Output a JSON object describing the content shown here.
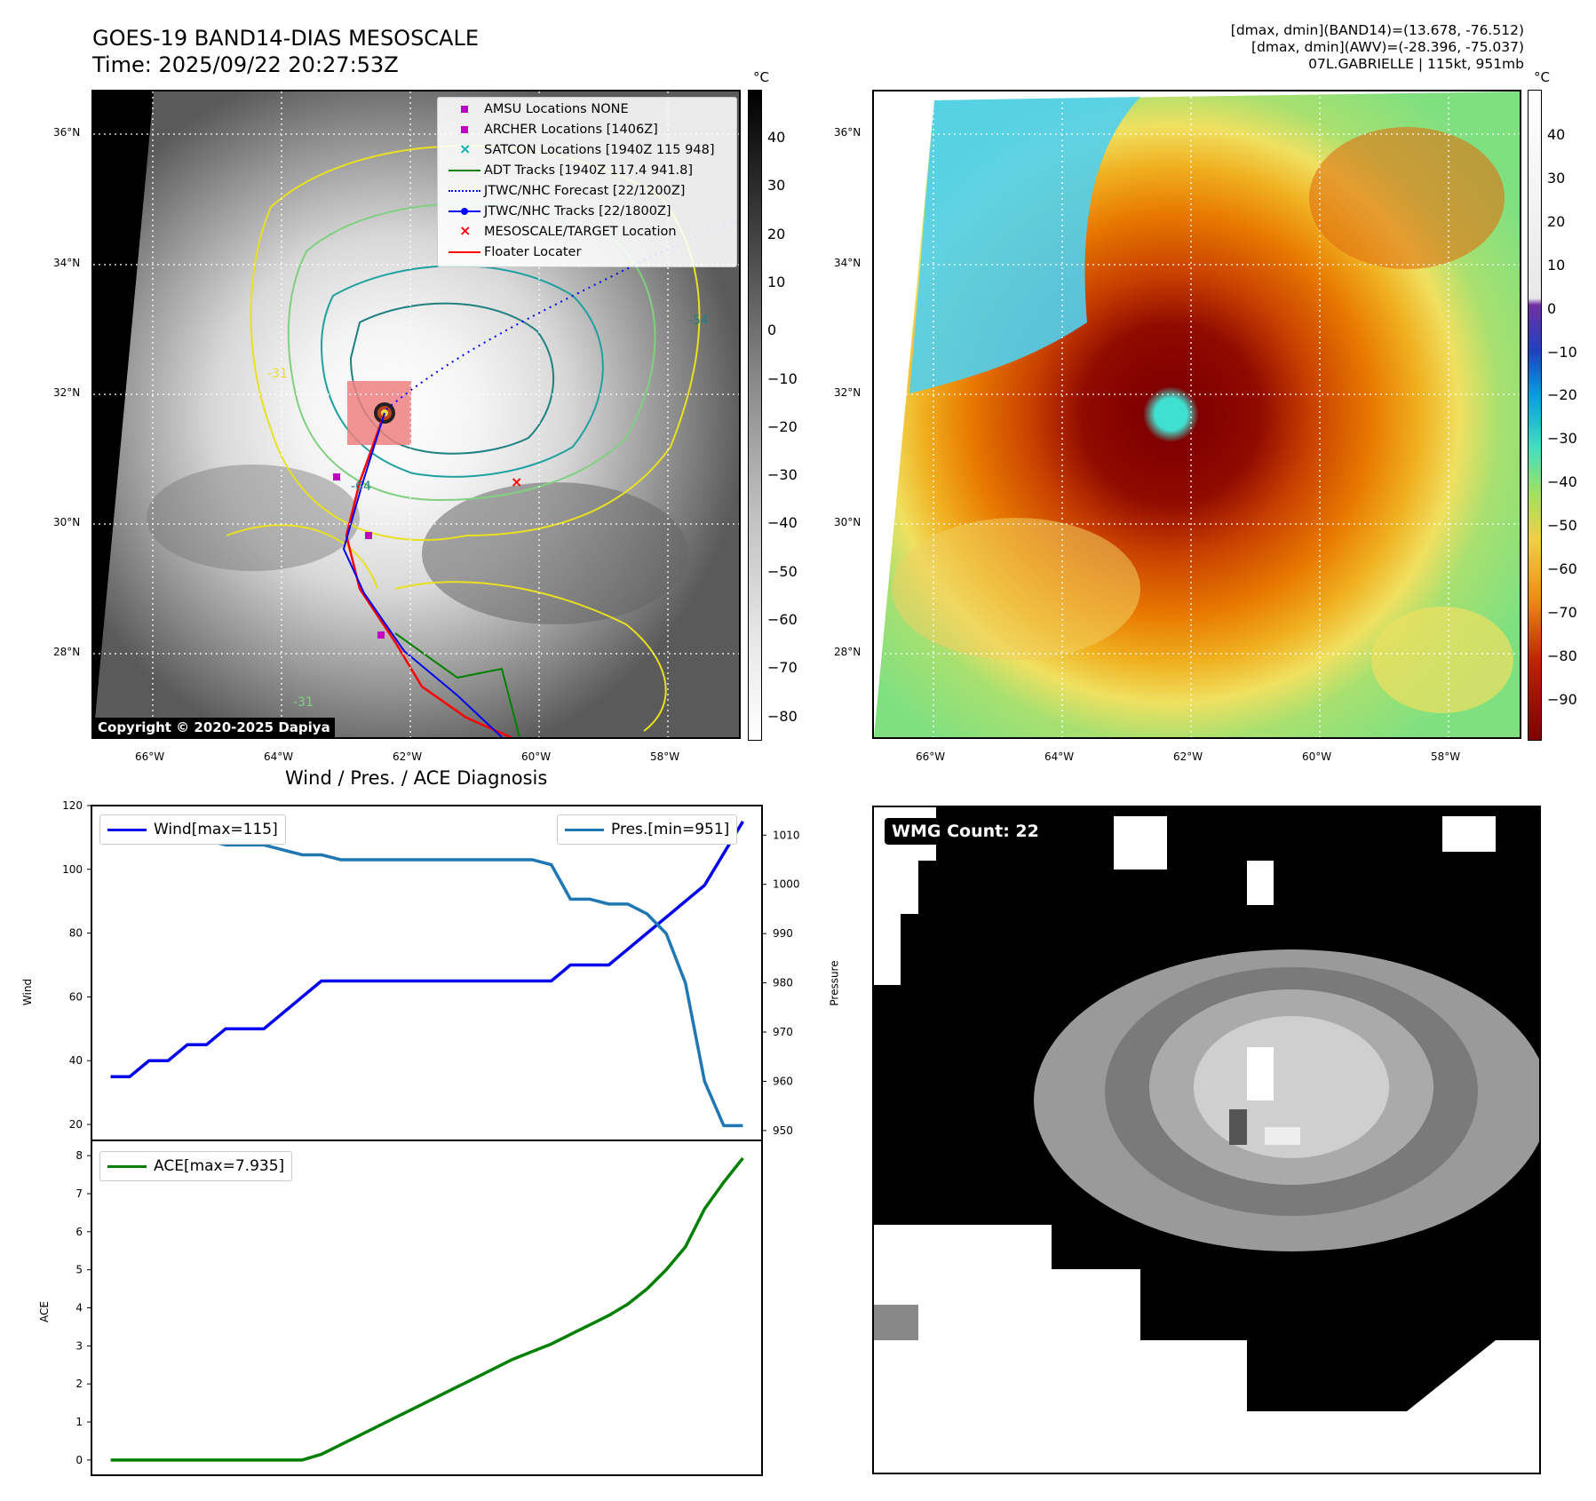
{
  "header": {
    "title_line1": "GOES-19 BAND14-DIAS MESOSCALE",
    "title_line2": "Time: 2025/09/22 20:27:53Z",
    "info_line1": "[dmax, dmin](BAND14)=(13.678, -76.512)",
    "info_line2": "[dmax, dmin](AWV)=(-28.396, -75.037)",
    "info_line3": "07L.GABRIELLE | 115kt, 951mb"
  },
  "map": {
    "lat_labels": [
      "36°N",
      "34°N",
      "32°N",
      "30°N",
      "28°N"
    ],
    "lon_labels": [
      "66°W",
      "64°W",
      "62°W",
      "60°W",
      "58°W"
    ],
    "copyright": "Copyright © 2020-2025 Dapiya",
    "contour_labels": [
      "-64",
      "-54",
      "-31",
      "-31"
    ],
    "legend": [
      {
        "label": "AMSU Locations NONE",
        "symbol": "square",
        "color": "#c000c0"
      },
      {
        "label": "ARCHER Locations [1406Z]",
        "symbol": "square",
        "color": "#c000c0"
      },
      {
        "label": "SATCON Locations [1940Z 115 948]",
        "symbol": "x",
        "color": "#00b0b0"
      },
      {
        "label": "ADT Tracks [1940Z 117.4 941.8]",
        "symbol": "line",
        "color": "#008000"
      },
      {
        "label": "JTWC/NHC Forecast [22/1200Z]",
        "symbol": "dotted",
        "color": "#0000ff"
      },
      {
        "label": "JTWC/NHC Tracks [22/1800Z]",
        "symbol": "line-dot",
        "color": "#0000ff"
      },
      {
        "label": "MESOSCALE/TARGET Location",
        "symbol": "x",
        "color": "#ff0000"
      },
      {
        "label": "Floater Locater",
        "symbol": "line",
        "color": "#ff0000"
      }
    ]
  },
  "colorbar_left": {
    "unit": "°C",
    "ticks": [
      "40",
      "30",
      "20",
      "10",
      "0",
      "−10",
      "−20",
      "−30",
      "−40",
      "−50",
      "−60",
      "−70",
      "−80"
    ]
  },
  "colorbar_right": {
    "unit": "°C",
    "ticks": [
      "40",
      "30",
      "20",
      "10",
      "0",
      "−10",
      "−20",
      "−30",
      "−40",
      "−50",
      "−60",
      "−70",
      "−80",
      "−90"
    ]
  },
  "chart_data": [
    {
      "type": "line",
      "title": "Wind / Pres. / ACE Diagnosis",
      "ylabel": "Wind",
      "y2label": "Pressure",
      "ylim": [
        15,
        120
      ],
      "y2lim": [
        948,
        1016
      ],
      "yticks": [
        20,
        40,
        60,
        80,
        100,
        120
      ],
      "y2ticks": [
        950,
        960,
        970,
        980,
        990,
        1000,
        1010
      ],
      "x": [
        0,
        1,
        2,
        3,
        4,
        5,
        6,
        7,
        8,
        9,
        10,
        11,
        12,
        13,
        14,
        15,
        16,
        17,
        18,
        19,
        20,
        21,
        22,
        23,
        24,
        25,
        26,
        27,
        28,
        29,
        30,
        31,
        32,
        33
      ],
      "series": [
        {
          "name": "Wind[max=115]",
          "axis": "left",
          "color": "#0000ee",
          "values": [
            35,
            35,
            40,
            40,
            45,
            45,
            50,
            50,
            50,
            55,
            60,
            65,
            65,
            65,
            65,
            65,
            65,
            65,
            65,
            65,
            65,
            65,
            65,
            65,
            70,
            70,
            70,
            75,
            80,
            85,
            90,
            95,
            105,
            115
          ]
        },
        {
          "name": "Pres.[min=951]",
          "axis": "right",
          "color": "#1f77b4",
          "values": [
            1012,
            1012,
            1011,
            1011,
            1010,
            1009,
            1008,
            1008,
            1008,
            1007,
            1006,
            1006,
            1005,
            1005,
            1005,
            1005,
            1005,
            1005,
            1005,
            1005,
            1005,
            1005,
            1005,
            1004,
            997,
            997,
            996,
            996,
            994,
            990,
            980,
            960,
            951,
            951
          ]
        }
      ]
    },
    {
      "type": "line",
      "ylabel": "ACE",
      "ylim": [
        -0.4,
        8.4
      ],
      "yticks": [
        0,
        1,
        2,
        3,
        4,
        5,
        6,
        7,
        8
      ],
      "x": [
        0,
        1,
        2,
        3,
        4,
        5,
        6,
        7,
        8,
        9,
        10,
        11,
        12,
        13,
        14,
        15,
        16,
        17,
        18,
        19,
        20,
        21,
        22,
        23,
        24,
        25,
        26,
        27,
        28,
        29,
        30,
        31,
        32,
        33
      ],
      "series": [
        {
          "name": "ACE[max=7.935]",
          "color": "#008000",
          "values": [
            0,
            0,
            0,
            0,
            0,
            0,
            0,
            0,
            0,
            0,
            0,
            0.15,
            0.4,
            0.65,
            0.9,
            1.15,
            1.4,
            1.65,
            1.9,
            2.15,
            2.4,
            2.65,
            2.85,
            3.05,
            3.3,
            3.55,
            3.8,
            4.1,
            4.5,
            5.0,
            5.6,
            6.6,
            7.3,
            7.935
          ]
        }
      ]
    }
  ],
  "wmg": {
    "badge": "WMG Count: 22"
  }
}
